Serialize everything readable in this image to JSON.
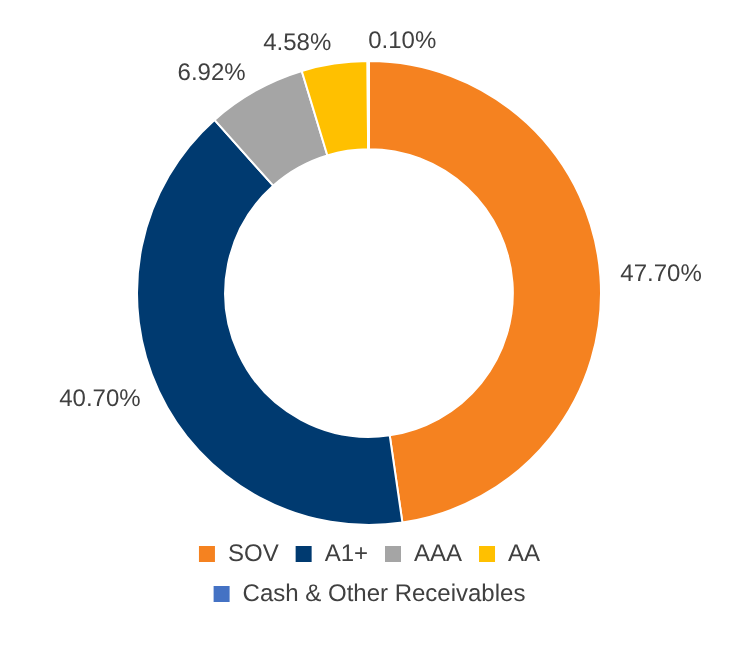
{
  "chart_data": {
    "type": "donut",
    "categories": [
      "SOV",
      "A1+",
      "AAA",
      "AA",
      "Cash & Other Receivables"
    ],
    "values": [
      47.7,
      40.7,
      6.92,
      4.58,
      0.1
    ],
    "colors": [
      "#f58220",
      "#003a70",
      "#a5a5a5",
      "#ffc000",
      "#4472c4"
    ],
    "value_labels": [
      "47.70%",
      "40.70%",
      "6.92%",
      "4.58%",
      "0.10%"
    ],
    "legend": "bottom"
  }
}
